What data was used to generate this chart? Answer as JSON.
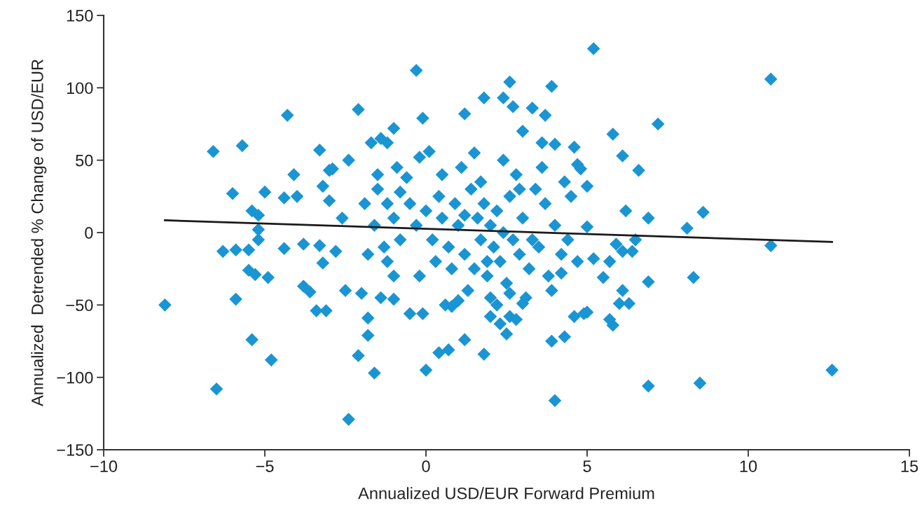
{
  "chart_data": {
    "type": "scatter",
    "xlabel": "Annualized USD/EUR Forward Premium",
    "ylabel": "Annualized  Detrended % Change of USD/EUR",
    "xlim": [
      -10,
      15
    ],
    "ylim": [
      -150,
      150
    ],
    "xticks": [
      {
        "value": -10,
        "label": "−10"
      },
      {
        "value": -5,
        "label": "−5"
      },
      0,
      5,
      10,
      15
    ],
    "yticks": [
      {
        "value": -150,
        "label": "−150"
      },
      {
        "value": -100,
        "label": "−100"
      },
      {
        "value": -50,
        "label": "−50"
      },
      0,
      50,
      100,
      150
    ],
    "grid": false,
    "series": [
      {
        "color": "#1a95d3",
        "marker": "diamond",
        "x": [
          -8.1,
          -6.6,
          -6.5,
          -5.7,
          -6.0,
          -6.3,
          -5.9,
          -5.9,
          -5.5,
          -5.4,
          -5.2,
          -5.2,
          -5.2,
          -5.0,
          -5.5,
          -5.3,
          -5.4,
          -4.9,
          -4.8,
          -4.3,
          -4.1,
          -4.4,
          -4.4,
          -4.0,
          -3.8,
          -3.8,
          -3.6,
          -3.3,
          -3.2,
          -3.3,
          -3.4,
          -3.1,
          -3.0,
          -2.9,
          -3.0,
          -3.2,
          -2.8,
          -2.6,
          -2.5,
          -2.4,
          -2.4,
          -2.1,
          -2.1,
          -2.0,
          -1.9,
          -1.7,
          -1.8,
          -1.8,
          -1.6,
          -1.4,
          -1.2,
          -1.0,
          -0.9,
          -1.5,
          -1.4,
          -1.0,
          -0.3,
          -0.1,
          -0.2,
          0.1,
          -0.5,
          -0.1,
          0.0,
          0.4,
          0.6,
          0.8,
          1.0,
          0.7,
          1.2,
          1.2,
          1.8,
          1.8,
          2.4,
          2.6,
          2.7,
          3.0,
          3.3,
          3.7,
          3.9,
          4.0,
          3.6,
          4.6,
          4.7,
          4.8,
          5.0,
          5.2,
          5.8,
          6.1,
          6.6,
          7.2,
          10.7,
          8.6,
          8.1,
          10.7,
          6.9,
          8.3,
          6.9,
          6.9,
          8.5,
          12.6,
          4.0,
          3.9,
          4.3,
          4.6,
          4.9,
          5.0,
          5.7,
          5.8,
          6.0,
          6.3,
          5.5,
          6.1,
          6.4,
          6.1,
          5.7,
          5.9,
          6.2,
          6.5,
          4.2,
          3.9,
          3.0,
          2.5,
          2.3,
          2.6,
          2.0,
          -1.5,
          -1.2,
          -1.0,
          -0.8,
          -1.3,
          -1.6,
          -1.8,
          -0.5,
          -0.3,
          0.0,
          0.2,
          0.4,
          0.5,
          0.7,
          0.9,
          1.0,
          1.2,
          1.4,
          1.5,
          1.6,
          1.7,
          1.8,
          1.9,
          2.0,
          2.1,
          2.2,
          2.3,
          2.4,
          2.5,
          2.6,
          2.7,
          2.8,
          2.9,
          3.0,
          3.2,
          3.4,
          3.5,
          3.7,
          3.8,
          4.0,
          4.2,
          4.5,
          4.7,
          5.0,
          5.2,
          -0.6,
          0.3,
          1.1,
          1.3,
          2.0,
          1.7,
          2.4,
          2.2,
          3.1,
          0.5,
          -0.2,
          -1.0,
          0.8,
          3.6,
          2.6,
          4.3,
          1.5,
          -0.8,
          -1.2,
          2.9,
          3.3,
          1.9,
          1.2,
          2.8,
          4.4
        ],
        "values": [
          -50,
          56,
          -108,
          60,
          27,
          -13,
          -12,
          -46,
          -12,
          15,
          12,
          2,
          -5,
          28,
          -26,
          -29,
          -74,
          -31,
          -88,
          81,
          40,
          24,
          -11,
          25,
          -8,
          -37,
          -41,
          57,
          -21,
          -9,
          -54,
          -54,
          43,
          44,
          22,
          32,
          -13,
          10,
          -40,
          50,
          -129,
          85,
          -85,
          -42,
          20,
          62,
          -71,
          -59,
          -97,
          65,
          62,
          72,
          45,
          40,
          -45,
          -46,
          112,
          79,
          52,
          56,
          -56,
          -56,
          -95,
          -83,
          -50,
          -51,
          -47,
          -81,
          -74,
          82,
          93,
          -84,
          93,
          104,
          87,
          70,
          86,
          81,
          101,
          61,
          62,
          59,
          47,
          44,
          32,
          127,
          68,
          53,
          43,
          75,
          106,
          14,
          3,
          -9,
          10,
          -31,
          -34,
          -106,
          -104,
          -95,
          -116,
          -75,
          -72,
          -58,
          -56,
          -55,
          -60,
          -64,
          -49,
          -49,
          -31,
          -40,
          -13,
          -13,
          -20,
          -8,
          15,
          -5,
          -28,
          -40,
          -49,
          -70,
          -63,
          -58,
          -58,
          30,
          20,
          10,
          -5,
          -10,
          5,
          -15,
          20,
          5,
          15,
          -5,
          25,
          10,
          -10,
          20,
          5,
          -15,
          30,
          -25,
          10,
          -5,
          20,
          -30,
          5,
          -10,
          15,
          -20,
          0,
          -35,
          25,
          -5,
          40,
          -15,
          10,
          -25,
          30,
          -10,
          20,
          -30,
          5,
          -15,
          25,
          -20,
          4,
          -18,
          38,
          -20,
          45,
          -40,
          -45,
          35,
          50,
          -50,
          -45,
          40,
          -30,
          -30,
          -25,
          45,
          -42,
          35,
          55,
          28,
          -20,
          30,
          -5,
          -20,
          12,
          -60,
          -5
        ]
      },
      {
        "type": "line",
        "color": "#1a1a1a",
        "marker": "none",
        "line_style": "solid",
        "x": [
          -8.1,
          12.6
        ],
        "values": [
          8.5,
          -6.5
        ]
      }
    ]
  }
}
